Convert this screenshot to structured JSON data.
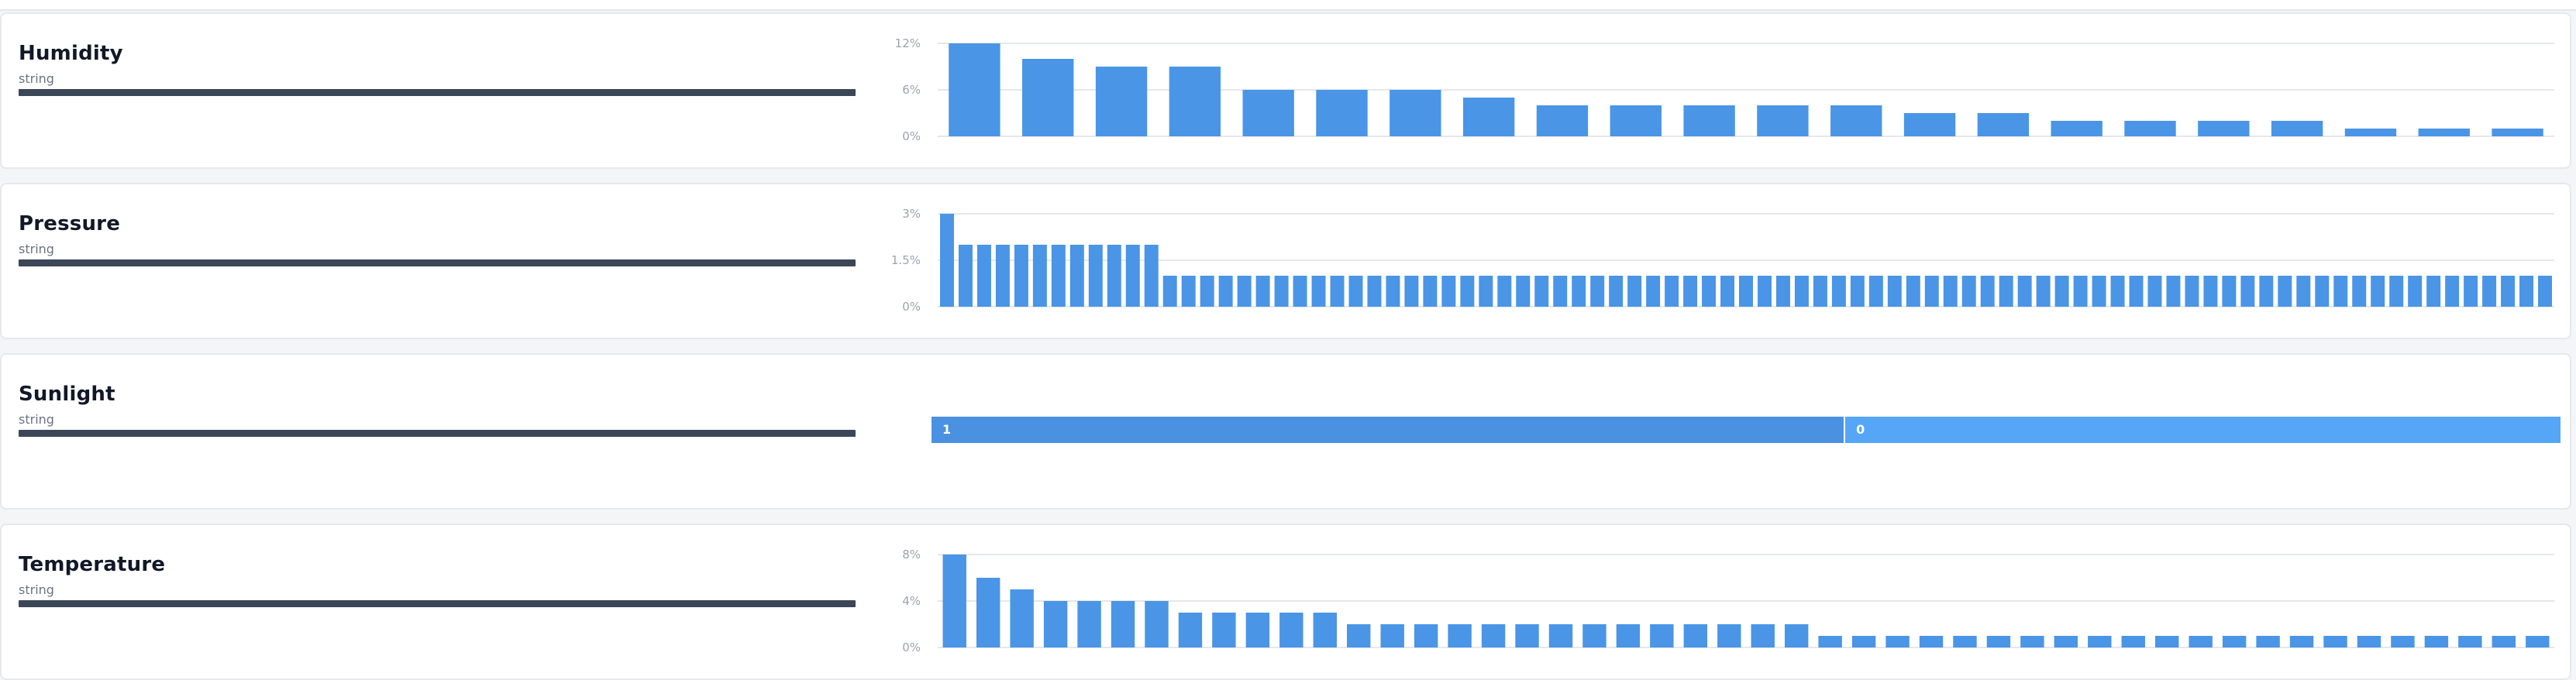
{
  "columns": [
    {
      "name": "Humidity",
      "type": "string"
    },
    {
      "name": "Pressure",
      "type": "string"
    },
    {
      "name": "Sunlight",
      "type": "string"
    },
    {
      "name": "Temperature",
      "type": "string"
    }
  ],
  "chart_data": [
    {
      "type": "bar",
      "series_of": "Humidity",
      "y_ticks": [
        "12%",
        "6%",
        "0%"
      ],
      "ylim": [
        0,
        12
      ],
      "values": [
        12,
        10,
        9,
        9,
        6,
        6,
        6,
        5,
        4,
        4,
        4,
        4,
        4,
        3,
        3,
        2,
        2,
        2,
        2,
        1,
        1,
        1
      ],
      "grid": true
    },
    {
      "type": "bar",
      "series_of": "Pressure",
      "y_ticks": [
        "3%",
        "1.5%",
        "0%"
      ],
      "ylim": [
        0,
        3
      ],
      "values": [
        3,
        2,
        2,
        2,
        2,
        2,
        2,
        2,
        2,
        2,
        2,
        2,
        1,
        1,
        1,
        1,
        1,
        1,
        1,
        1,
        1,
        1,
        1,
        1,
        1,
        1,
        1,
        1,
        1,
        1,
        1,
        1,
        1,
        1,
        1,
        1,
        1,
        1,
        1,
        1,
        1,
        1,
        1,
        1,
        1,
        1,
        1,
        1,
        1,
        1,
        1,
        1,
        1,
        1,
        1,
        1,
        1,
        1,
        1,
        1,
        1,
        1,
        1,
        1,
        1,
        1,
        1,
        1,
        1,
        1,
        1,
        1,
        1,
        1,
        1,
        1,
        1,
        1,
        1,
        1,
        1,
        1,
        1,
        1,
        1,
        1,
        1
      ],
      "grid": true
    },
    {
      "type": "bar",
      "series_of": "Sunlight",
      "orientation": "stacked-horizontal",
      "categories": [
        "1",
        "0"
      ],
      "values": [
        56,
        44
      ],
      "colors": [
        "#4a91e2",
        "#55a6f6"
      ]
    },
    {
      "type": "bar",
      "series_of": "Temperature",
      "y_ticks": [
        "8%",
        "4%",
        "0%"
      ],
      "ylim": [
        0,
        8
      ],
      "values": [
        8,
        6,
        5,
        4,
        4,
        4,
        4,
        3,
        3,
        3,
        3,
        3,
        2,
        2,
        2,
        2,
        2,
        2,
        2,
        2,
        2,
        2,
        2,
        2,
        2,
        2,
        1,
        1,
        1,
        1,
        1,
        1,
        1,
        1,
        1,
        1,
        1,
        1,
        1,
        1,
        1,
        1,
        1,
        1,
        1,
        1,
        1,
        1
      ],
      "grid": true
    }
  ],
  "colors": {
    "bar": "#4a95e6",
    "type_bar": "#3b4757"
  }
}
